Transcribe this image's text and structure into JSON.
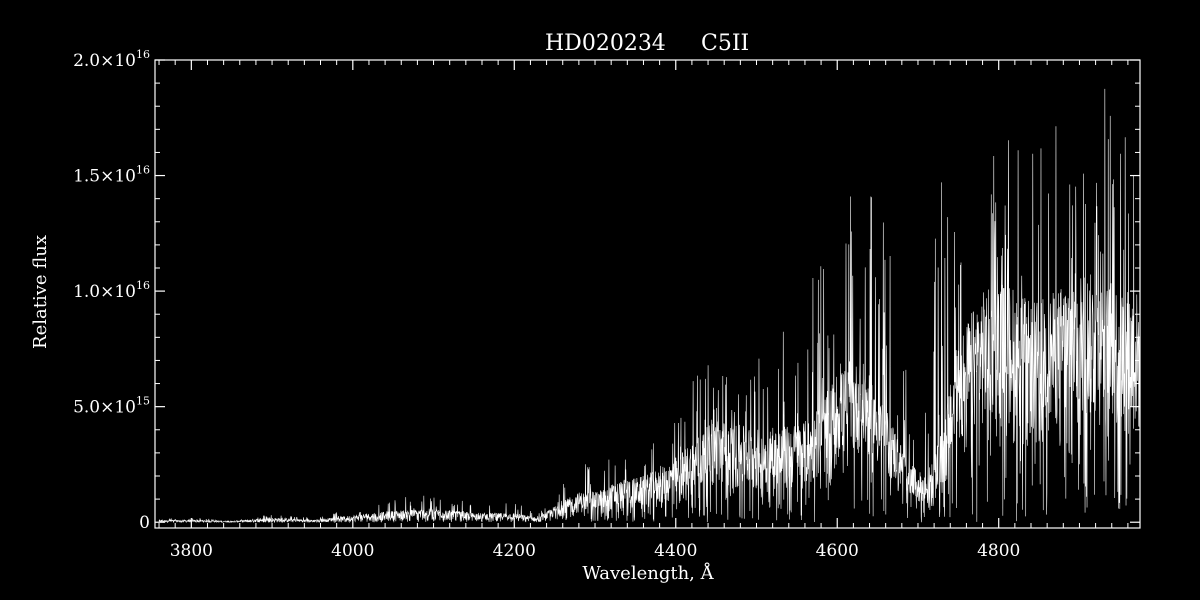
{
  "chart_data": {
    "type": "line",
    "title_parts": [
      "HD020234",
      "C5II"
    ],
    "xlabel": "Wavelength, Å",
    "ylabel": "Relative flux",
    "xlim": [
      3755,
      4975
    ],
    "ylim": [
      -250000000000000.0,
      2e+16
    ],
    "x_ticks": [
      3800,
      4000,
      4200,
      4400,
      4600,
      4800
    ],
    "x_tick_labels": [
      "3800",
      "4000",
      "4200",
      "4400",
      "4600",
      "4800"
    ],
    "y_ticks": [
      0,
      5000000000000000.0,
      1e+16,
      1.5e+16,
      2e+16
    ],
    "y_tick_labels": [
      {
        "mantissa": "0",
        "exp": ""
      },
      {
        "mantissa": "5.0×10",
        "exp": "15"
      },
      {
        "mantissa": "1.0×10",
        "exp": "16"
      },
      {
        "mantissa": "1.5×10",
        "exp": "16"
      },
      {
        "mantissa": "2.0×10",
        "exp": "16"
      }
    ],
    "grid": false,
    "colors": {
      "background": "#000000",
      "line": "#ffffff"
    },
    "series": [
      {
        "x": [
          3760,
          3800,
          3850,
          3900,
          3950,
          4000,
          4050,
          4100,
          4150,
          4200,
          4230,
          4250,
          4280,
          4300,
          4330,
          4360,
          4390,
          4420,
          4450,
          4480,
          4510,
          4540,
          4570,
          4600,
          4630,
          4660,
          4690,
          4710,
          4730,
          4750,
          4780,
          4810,
          4840,
          4870,
          4900,
          4930,
          4975
        ],
        "upper": [
          100000000000000.0,
          100000000000000.0,
          50000000000000.0,
          200000000000000.0,
          100000000000000.0,
          300000000000000.0,
          500000000000000.0,
          600000000000000.0,
          400000000000000.0,
          400000000000000.0,
          200000000000000.0,
          700000000000000.0,
          1300000000000000.0,
          1300000000000000.0,
          1800000000000000.0,
          2000000000000000.0,
          2500000000000000.0,
          3500000000000000.0,
          4500000000000000.0,
          4200000000000000.0,
          4000000000000000.0,
          4200000000000000.0,
          4500000000000000.0,
          6500000000000000.0,
          7000000000000000.0,
          5000000000000000.0,
          2500000000000000.0,
          2000000000000000.0,
          4000000000000000.0,
          8000000000000000.0,
          1e+16,
          1.05e+16,
          9500000000000000.0,
          1e+16,
          1.1e+16,
          1.05e+16,
          1e+16
        ],
        "lower": [
          0,
          0,
          0,
          0,
          0,
          50000000000000.0,
          100000000000000.0,
          150000000000000.0,
          100000000000000.0,
          100000000000000.0,
          0,
          200000000000000.0,
          400000000000000.0,
          400000000000000.0,
          500000000000000.0,
          600000000000000.0,
          800000000000000.0,
          1200000000000000.0,
          1500000000000000.0,
          1300000000000000.0,
          1200000000000000.0,
          1300000000000000.0,
          1500000000000000.0,
          2500000000000000.0,
          3000000000000000.0,
          2000000000000000.0,
          1000000000000000.0,
          600000000000000.0,
          1000000000000000.0,
          3000000000000000.0,
          4000000000000000.0,
          4500000000000000.0,
          3500000000000000.0,
          4000000000000000.0,
          4500000000000000.0,
          4000000000000000.0,
          3500000000000000.0
        ],
        "spike_max": [
          200000000000000.0,
          200000000000000.0,
          100000000000000.0,
          350000000000000.0,
          200000000000000.0,
          600000000000000.0,
          1000000000000000.0,
          1300000000000000.0,
          800000000000000.0,
          900000000000000.0,
          400000000000000.0,
          1500000000000000.0,
          2700000000000000.0,
          2500000000000000.0,
          3000000000000000.0,
          3500000000000000.0,
          4500000000000000.0,
          6500000000000000.0,
          7500000000000000.0,
          7000000000000000.0,
          7500000000000000.0,
          9000000000000000.0,
          1.15e+16,
          1.3e+16,
          1.5e+16,
          1.3e+16,
          7000000000000000.0,
          8000000000000000.0,
          1.55e+16,
          1.5e+16,
          1.6e+16,
          1.7e+16,
          1.6e+16,
          1.8e+16,
          1.75e+16,
          1.95e+16,
          1.75e+16
        ],
        "sample_step": 0.35
      }
    ]
  }
}
